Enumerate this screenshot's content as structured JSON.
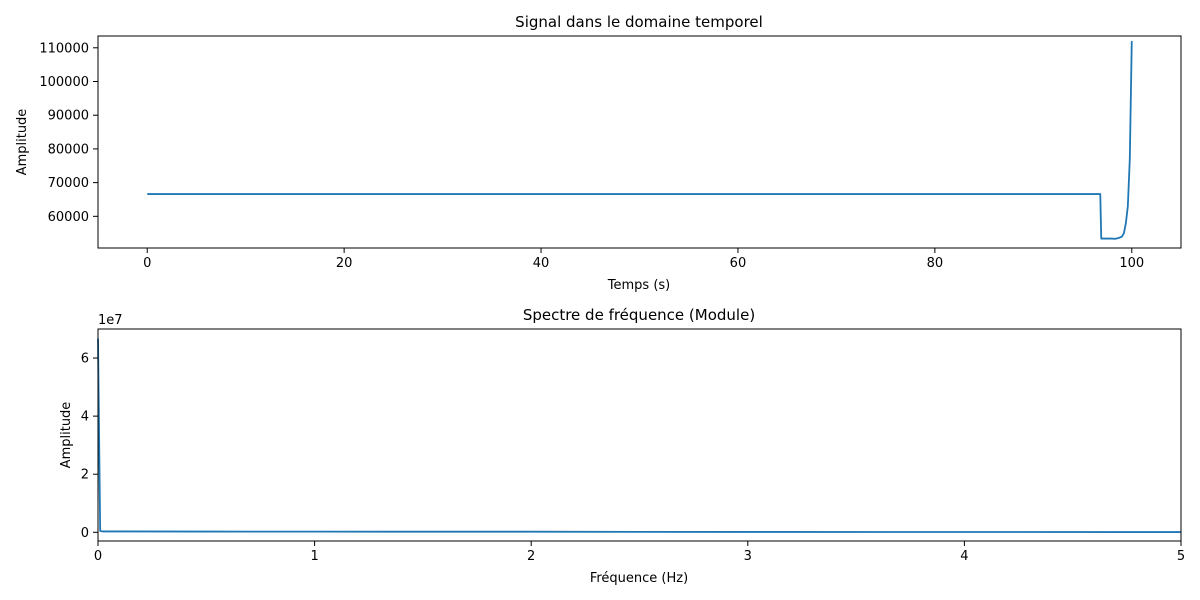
{
  "chart_data": [
    {
      "type": "line",
      "title": "Signal dans le domaine temporel",
      "xlabel": "Temps (s)",
      "ylabel": "Amplitude",
      "xlim": [
        -5,
        105
      ],
      "ylim": [
        50600,
        113500
      ],
      "xticks": [
        0,
        20,
        40,
        60,
        80,
        100
      ],
      "yticks": [
        60000,
        70000,
        80000,
        90000,
        100000,
        110000
      ],
      "xtick_labels": [
        "0",
        "20",
        "40",
        "60",
        "80",
        "100"
      ],
      "ytick_labels": [
        "60000",
        "70000",
        "80000",
        "90000",
        "100000",
        "110000"
      ],
      "grid": false,
      "color": "#1f77b4",
      "series": [
        {
          "x": [
            0,
            96.8,
            96.9,
            98.0,
            98.3,
            98.7,
            99.0,
            99.2,
            99.4,
            99.6,
            99.8,
            100.0
          ],
          "y": [
            66600,
            66600,
            53400,
            53400,
            53300,
            53600,
            54000,
            55000,
            58000,
            63000,
            77000,
            112000
          ]
        }
      ]
    },
    {
      "type": "line",
      "title": "Spectre de fréquence (Module)",
      "xlabel": "Fréquence (Hz)",
      "ylabel": "Amplitude",
      "xlim": [
        0,
        5
      ],
      "ylim": [
        -3000000,
        70000000
      ],
      "xticks": [
        0,
        1,
        2,
        3,
        4,
        5
      ],
      "yticks": [
        0,
        20000000,
        40000000,
        60000000
      ],
      "xtick_labels": [
        "0",
        "1",
        "2",
        "3",
        "4",
        "5"
      ],
      "ytick_labels": [
        "0",
        "2",
        "4",
        "6"
      ],
      "y_offset_text": "1e7",
      "grid": false,
      "color": "#1f77b4",
      "series": [
        {
          "x": [
            0,
            0.01,
            0.02,
            0.5,
            1.0,
            2.0,
            2.5,
            3.0,
            4.0,
            5.0
          ],
          "y": [
            66700000,
            500000,
            300000,
            250000,
            220000,
            200000,
            150000,
            120000,
            100000,
            80000
          ]
        }
      ]
    }
  ]
}
